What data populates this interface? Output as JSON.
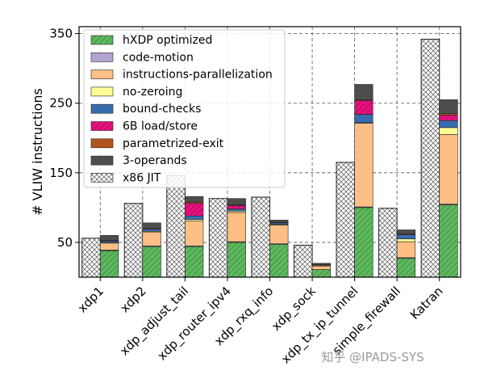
{
  "chart_data": {
    "type": "bar",
    "ylabel": "# VLIW instructions",
    "ylim": [
      0,
      360
    ],
    "yticks": [
      50,
      150,
      250,
      350
    ],
    "grid": true,
    "legend_position": "top-left",
    "categories": [
      "xdp1",
      "xdp2",
      "xdp_adjust_tail",
      "xdp_router_ipv4",
      "xdp_rxq_info",
      "xdp_sock",
      "xdp_tx_ip_tunnel",
      "simple_firewall",
      "Katran"
    ],
    "x86_jit": {
      "name": "x86 JIT",
      "color": "#ffffff",
      "values": [
        56,
        106,
        146,
        113,
        115,
        46,
        165,
        99,
        342
      ]
    },
    "series": [
      {
        "name": "hXDP optimized",
        "color": "#5fb85f",
        "pattern": "hatch",
        "values": [
          38,
          44,
          44,
          50,
          47,
          11,
          100,
          27,
          104
        ]
      },
      {
        "name": "code-motion",
        "color": "#b3a3d3",
        "values": [
          1,
          1,
          1,
          1,
          1,
          0,
          1,
          1,
          1
        ]
      },
      {
        "name": "instructions-parallelization",
        "color": "#fdbf85",
        "values": [
          10,
          20,
          36,
          42,
          27,
          5,
          120,
          23,
          100
        ]
      },
      {
        "name": "no-zeroing",
        "color": "#fefe96",
        "values": [
          1,
          1,
          2,
          2,
          1,
          1,
          1,
          4,
          10
        ]
      },
      {
        "name": "bound-checks",
        "color": "#386cb0",
        "values": [
          2,
          3,
          5,
          3,
          2,
          0,
          12,
          6,
          10
        ]
      },
      {
        "name": "6B load/store",
        "color": "#e6117d",
        "pattern": "hatch",
        "values": [
          0,
          0,
          18,
          5,
          0,
          0,
          20,
          0,
          8
        ]
      },
      {
        "name": "parametrized-exit",
        "color": "#b3541e",
        "values": [
          1,
          1,
          2,
          1,
          1,
          1,
          1,
          1,
          2
        ]
      },
      {
        "name": "3-operands",
        "color": "#4d4d4d",
        "values": [
          7,
          8,
          8,
          9,
          3,
          2,
          22,
          6,
          20
        ]
      }
    ]
  },
  "watermark": "知乎 @IPADS-SYS"
}
